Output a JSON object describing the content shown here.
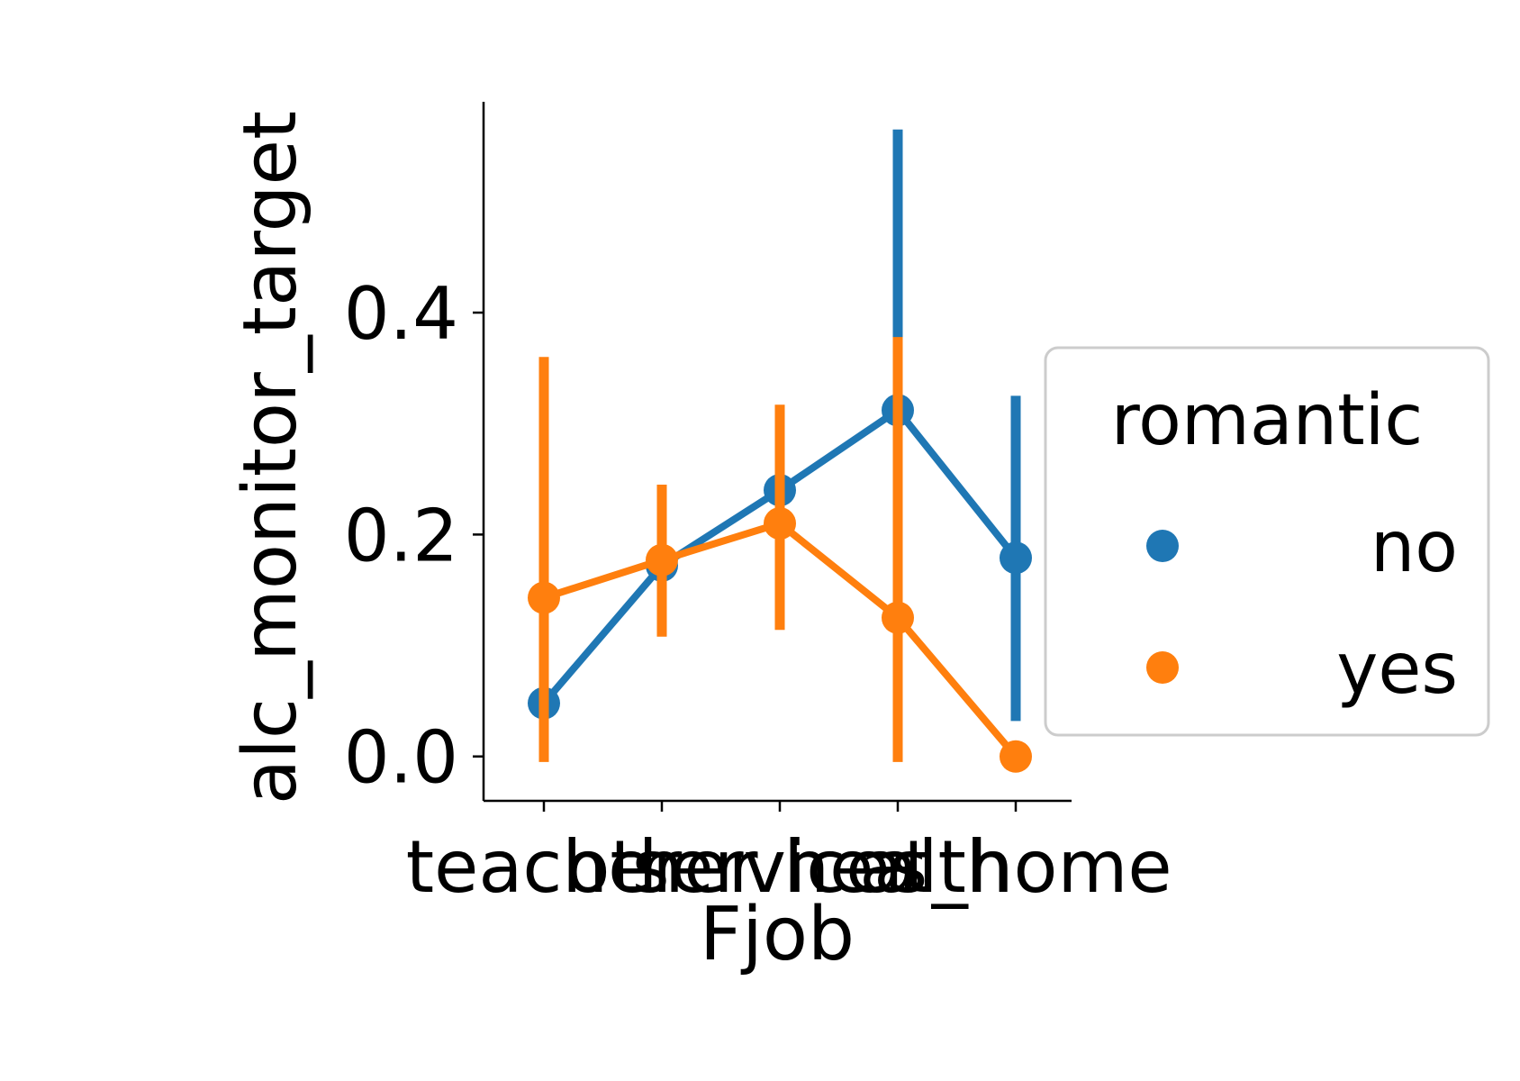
{
  "chart_data": {
    "type": "line",
    "title": "",
    "xlabel": "Fjob",
    "ylabel": "alc_monitor_target",
    "categories": [
      "teacher",
      "other",
      "services",
      "health",
      "at_home"
    ],
    "ylim": [
      -0.04,
      0.59
    ],
    "yticks": [
      0.0,
      0.2,
      0.4
    ],
    "ytick_labels": [
      "0.0",
      "0.2",
      "0.4"
    ],
    "grid": false,
    "legend": {
      "title": "romantic",
      "placement": "center-right outside"
    },
    "series": [
      {
        "name": "no",
        "color": "#1f77b4",
        "values": [
          0.048,
          0.172,
          0.24,
          0.312,
          0.179
        ],
        "ci_low": [
          null,
          null,
          null,
          0.078,
          0.032
        ],
        "ci_high": [
          null,
          null,
          null,
          0.565,
          0.325
        ]
      },
      {
        "name": "yes",
        "color": "#ff7f0e",
        "values": [
          0.143,
          0.177,
          0.21,
          0.125,
          0.0
        ],
        "ci_low": [
          -0.005,
          0.108,
          0.114,
          -0.005,
          null
        ],
        "ci_high": [
          0.36,
          0.245,
          0.317,
          0.378,
          null
        ]
      }
    ]
  }
}
